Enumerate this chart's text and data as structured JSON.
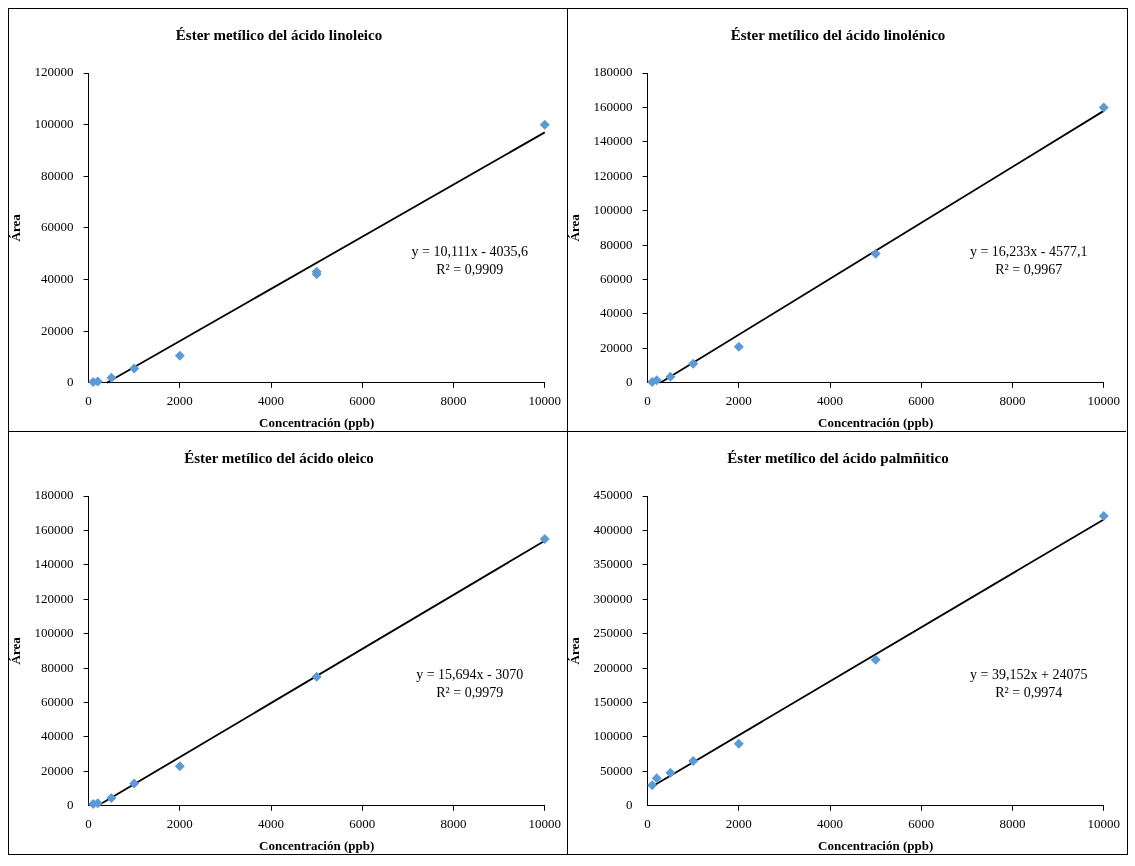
{
  "chart_data": [
    {
      "type": "scatter",
      "title": "Éster metílico del ácido linoleico",
      "xlabel": "Concentración (ppb)",
      "ylabel": "Área",
      "marker": "diamond",
      "xlim": [
        0,
        10000
      ],
      "xticks": [
        0,
        2000,
        4000,
        6000,
        8000,
        10000
      ],
      "ylim": [
        0,
        120000
      ],
      "yticks": [
        0,
        20000,
        40000,
        60000,
        80000,
        100000,
        120000
      ],
      "annotations": [
        "y = 10,111x - 4035,6",
        "R² = 0,9909"
      ],
      "series": [
        {
          "type": "scatter",
          "color": "#5b9bd5",
          "x": [
            100,
            200,
            500,
            1000,
            2000,
            5000,
            5000,
            10000
          ],
          "values": [
            300,
            500,
            2000,
            5500,
            10500,
            43000,
            42000,
            100000
          ]
        },
        {
          "type": "line",
          "marker": "none",
          "color": "#000000",
          "x": [
            400,
            10000
          ],
          "values": [
            0,
            97000
          ]
        }
      ]
    },
    {
      "type": "scatter",
      "title": "Éster metílico del ácido linolénico",
      "xlabel": "Concentración (ppb)",
      "ylabel": "Área",
      "marker": "diamond",
      "xlim": [
        0,
        10000
      ],
      "xticks": [
        0,
        2000,
        4000,
        6000,
        8000,
        10000
      ],
      "ylim": [
        0,
        180000
      ],
      "yticks": [
        0,
        20000,
        40000,
        60000,
        80000,
        100000,
        120000,
        140000,
        160000,
        180000
      ],
      "annotations": [
        "y = 16,233x - 4577,1",
        "R² = 0,9967"
      ],
      "series": [
        {
          "type": "scatter",
          "color": "#5b9bd5",
          "x": [
            100,
            200,
            500,
            1000,
            2000,
            5000,
            10000
          ],
          "values": [
            500,
            1500,
            3500,
            11000,
            21000,
            75000,
            160000
          ]
        },
        {
          "type": "line",
          "marker": "none",
          "color": "#000000",
          "x": [
            280,
            10000
          ],
          "values": [
            0,
            158000
          ]
        }
      ]
    },
    {
      "type": "scatter",
      "title": "Éster metílico del ácido oleico",
      "xlabel": "Concentración (ppb)",
      "ylabel": "Área",
      "marker": "diamond",
      "xlim": [
        0,
        10000
      ],
      "xticks": [
        0,
        2000,
        4000,
        6000,
        8000,
        10000
      ],
      "ylim": [
        0,
        180000
      ],
      "yticks": [
        0,
        20000,
        40000,
        60000,
        80000,
        100000,
        120000,
        140000,
        160000,
        180000
      ],
      "annotations": [
        "y = 15,694x - 3070",
        "R² = 0,9979"
      ],
      "series": [
        {
          "type": "scatter",
          "color": "#5b9bd5",
          "x": [
            100,
            200,
            500,
            1000,
            2000,
            5000,
            10000
          ],
          "values": [
            1000,
            1500,
            4500,
            13000,
            23000,
            75000,
            155000
          ]
        },
        {
          "type": "line",
          "marker": "none",
          "color": "#000000",
          "x": [
            200,
            10000
          ],
          "values": [
            0,
            154000
          ]
        }
      ]
    },
    {
      "type": "scatter",
      "title": "Éster metílico del ácido palmñitico",
      "xlabel": "Concentración (ppb)",
      "ylabel": "Área",
      "marker": "diamond",
      "xlim": [
        0,
        10000
      ],
      "xticks": [
        0,
        2000,
        4000,
        6000,
        8000,
        10000
      ],
      "ylim": [
        0,
        450000
      ],
      "yticks": [
        0,
        50000,
        100000,
        150000,
        200000,
        250000,
        300000,
        350000,
        400000,
        450000
      ],
      "annotations": [
        "y = 39,152x + 24075",
        "R² = 0,9974"
      ],
      "series": [
        {
          "type": "scatter",
          "color": "#5b9bd5",
          "x": [
            100,
            200,
            500,
            1000,
            2000,
            5000,
            10000
          ],
          "values": [
            30000,
            40000,
            48000,
            65000,
            90000,
            212000,
            421000
          ]
        },
        {
          "type": "line",
          "marker": "none",
          "color": "#000000",
          "x": [
            100,
            10000
          ],
          "values": [
            28000,
            416000
          ]
        }
      ]
    }
  ]
}
